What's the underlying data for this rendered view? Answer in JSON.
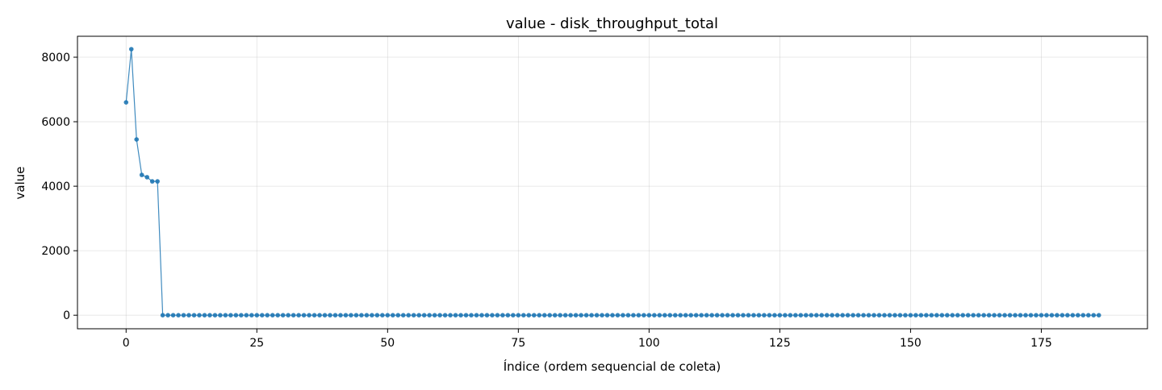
{
  "chart_data": {
    "type": "line",
    "title": "value - disk_throughput_total",
    "xlabel": "Índice (ordem sequencial de coleta)",
    "ylabel": "value",
    "xlim": [
      -9.3,
      195.3
    ],
    "ylim": [
      -420,
      8650
    ],
    "xticks": [
      0,
      25,
      50,
      75,
      100,
      125,
      150,
      175
    ],
    "yticks": [
      0,
      2000,
      4000,
      6000,
      8000
    ],
    "xtick_labels": [
      "0",
      "25",
      "50",
      "75",
      "100",
      "125",
      "150",
      "175"
    ],
    "ytick_labels": [
      "0",
      "2000",
      "4000",
      "6000",
      "8000"
    ],
    "grid": true,
    "marker": "circle",
    "series": [
      {
        "color": "#1f77b4",
        "x_start": 0,
        "x_end": 186,
        "head_values": [
          6600,
          8250,
          5450,
          4350,
          4280,
          4150,
          4150
        ],
        "tail_value": 0
      }
    ]
  }
}
